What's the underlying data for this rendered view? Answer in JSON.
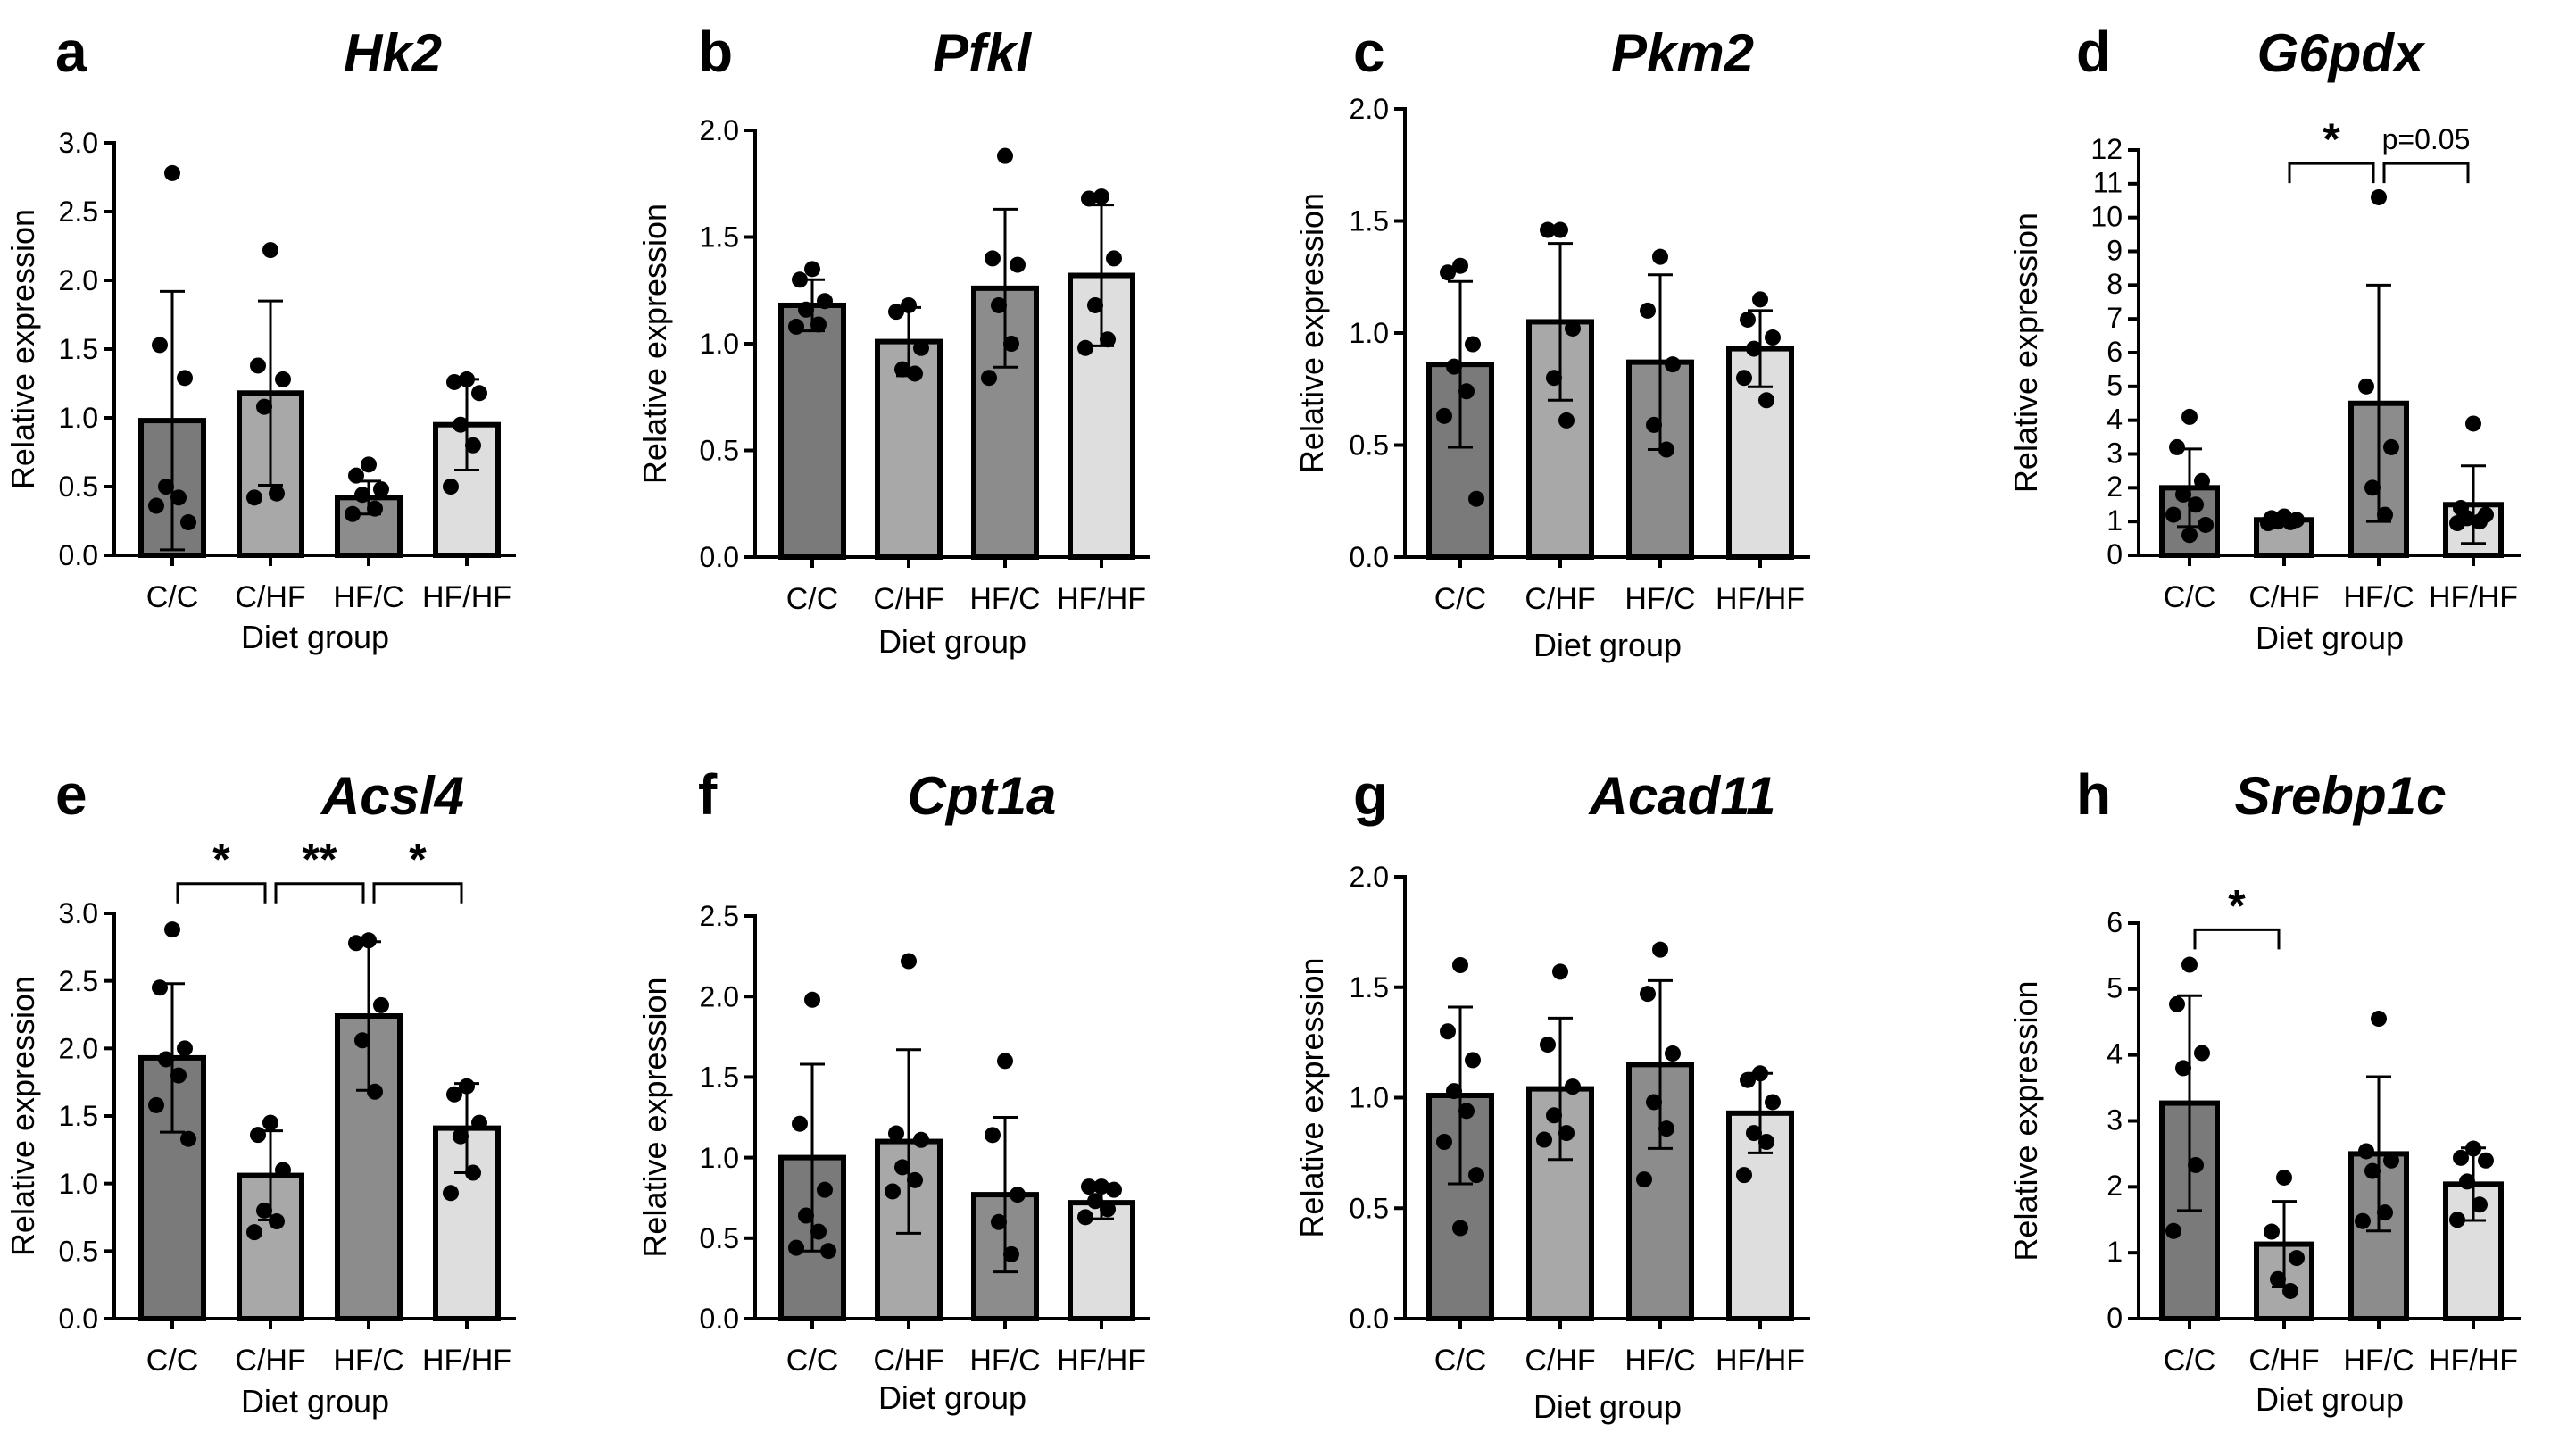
{
  "figure": {
    "categories": [
      "C/C",
      "C/HF",
      "HF/C",
      "HF/HF"
    ],
    "bar_colors": [
      "#7a7a7a",
      "#a8a8a8",
      "#8c8c8c",
      "#dedede"
    ],
    "ylabel": "Relative expression",
    "xlabel": "Diet group"
  },
  "chart_data": [
    {
      "type": "bar",
      "panel": "a",
      "title": "Hk2",
      "categories": [
        "C/C",
        "C/HF",
        "HF/C",
        "HF/HF"
      ],
      "values": [
        0.98,
        1.18,
        0.42,
        0.95
      ],
      "sd": [
        0.94,
        0.67,
        0.12,
        0.33
      ],
      "points": [
        [
          2.78,
          1.53,
          1.29,
          0.5,
          0.42,
          0.36,
          0.24
        ],
        [
          2.22,
          1.38,
          1.28,
          1.08,
          0.45,
          0.42
        ],
        [
          0.66,
          0.58,
          0.48,
          0.44,
          0.34,
          0.3
        ],
        [
          1.28,
          1.26,
          1.18,
          0.95,
          0.8,
          0.5
        ]
      ],
      "ylim": [
        0,
        3.0
      ],
      "yticks": [
        "0.0",
        "0.5",
        "1.0",
        "1.5",
        "2.0",
        "2.5",
        "3.0"
      ],
      "xlabel": "Diet group",
      "ylabel": "Relative expression",
      "brackets": []
    },
    {
      "type": "bar",
      "panel": "b",
      "title": "Pfkl",
      "categories": [
        "C/C",
        "C/HF",
        "HF/C",
        "HF/HF"
      ],
      "values": [
        1.18,
        1.01,
        1.26,
        1.32
      ],
      "sd": [
        0.12,
        0.16,
        0.37,
        0.33
      ],
      "points": [
        [
          1.35,
          1.3,
          1.2,
          1.16,
          1.09,
          1.08
        ],
        [
          1.18,
          1.15,
          0.98,
          0.88,
          0.86
        ],
        [
          1.88,
          1.4,
          1.37,
          1.18,
          1.0,
          0.84
        ],
        [
          1.69,
          1.68,
          1.4,
          1.18,
          1.02,
          0.98
        ]
      ],
      "ylim": [
        0,
        2.0
      ],
      "yticks": [
        "0.0",
        "0.5",
        "1.0",
        "1.5",
        "2.0"
      ],
      "xlabel": "Diet group",
      "ylabel": "Relative expression",
      "brackets": []
    },
    {
      "type": "bar",
      "panel": "c",
      "title": "Pkm2",
      "categories": [
        "C/C",
        "C/HF",
        "HF/C",
        "HF/HF"
      ],
      "values": [
        0.86,
        1.05,
        0.87,
        0.93
      ],
      "sd": [
        0.37,
        0.35,
        0.39,
        0.17
      ],
      "points": [
        [
          1.3,
          1.27,
          0.95,
          0.85,
          0.74,
          0.63,
          0.26
        ],
        [
          1.46,
          1.46,
          1.02,
          0.8,
          0.61
        ],
        [
          1.34,
          1.1,
          0.86,
          0.59,
          0.48
        ],
        [
          1.15,
          1.06,
          0.98,
          0.93,
          0.7,
          0.8
        ]
      ],
      "ylim": [
        0,
        2.0
      ],
      "yticks": [
        "0.0",
        "0.5",
        "1.0",
        "1.5",
        "2.0"
      ],
      "xlabel": "Diet group",
      "ylabel": "Relative expression",
      "brackets": []
    },
    {
      "type": "bar",
      "panel": "d",
      "title": "G6pdx",
      "categories": [
        "C/C",
        "C/HF",
        "HF/C",
        "HF/HF"
      ],
      "values": [
        2.0,
        1.05,
        4.5,
        1.5
      ],
      "sd": [
        1.15,
        0.1,
        3.5,
        1.15
      ],
      "points": [
        [
          4.1,
          3.2,
          2.2,
          1.8,
          1.5,
          1.2,
          0.9,
          0.6
        ],
        [
          1.15,
          1.1,
          1.05,
          1.0,
          0.98,
          0.95
        ],
        [
          10.6,
          5.0,
          3.2,
          2.0,
          1.2
        ],
        [
          3.9,
          1.4,
          1.2,
          1.1,
          1.0,
          0.95
        ]
      ],
      "ylim": [
        0,
        12
      ],
      "yticks": [
        "0",
        "1",
        "2",
        "3",
        "4",
        "5",
        "6",
        "7",
        "8",
        "9",
        "10",
        "11",
        "12"
      ],
      "xlabel": "Diet group",
      "ylabel": "Relative expression",
      "brackets": [
        {
          "from": 1,
          "to": 2,
          "text": "*",
          "level": 11.6
        },
        {
          "from": 2,
          "to": 3,
          "text": "p=0.05",
          "level": 11.6
        }
      ]
    },
    {
      "type": "bar",
      "panel": "e",
      "title": "Acsl4",
      "categories": [
        "C/C",
        "C/HF",
        "HF/C",
        "HF/HF"
      ],
      "values": [
        1.93,
        1.06,
        2.24,
        1.41
      ],
      "sd": [
        0.55,
        0.33,
        0.55,
        0.33
      ],
      "points": [
        [
          2.88,
          2.45,
          2.0,
          1.92,
          1.8,
          1.58,
          1.33
        ],
        [
          1.45,
          1.36,
          1.1,
          0.8,
          0.72,
          0.64
        ],
        [
          2.8,
          2.78,
          2.32,
          2.06,
          1.68
        ],
        [
          1.72,
          1.66,
          1.45,
          1.35,
          1.08,
          0.93
        ]
      ],
      "ylim": [
        0,
        3.0
      ],
      "yticks": [
        "0.0",
        "0.5",
        "1.0",
        "1.5",
        "2.0",
        "2.5",
        "3.0"
      ],
      "xlabel": "Diet group",
      "ylabel": "Relative expression",
      "brackets": [
        {
          "from": 0,
          "to": 1,
          "text": "*",
          "level": 3.22
        },
        {
          "from": 1,
          "to": 2,
          "text": "**",
          "level": 3.22
        },
        {
          "from": 2,
          "to": 3,
          "text": "*",
          "level": 3.22
        }
      ]
    },
    {
      "type": "bar",
      "panel": "f",
      "title": "Cpt1a",
      "categories": [
        "C/C",
        "C/HF",
        "HF/C",
        "HF/HF"
      ],
      "values": [
        1.0,
        1.1,
        0.77,
        0.72
      ],
      "sd": [
        0.58,
        0.57,
        0.48,
        0.1
      ],
      "points": [
        [
          1.98,
          1.21,
          0.8,
          0.64,
          0.54,
          0.44,
          0.42
        ],
        [
          2.22,
          1.15,
          1.11,
          0.94,
          0.86,
          0.79
        ],
        [
          1.6,
          1.14,
          0.77,
          0.6,
          0.4
        ],
        [
          0.82,
          0.82,
          0.8,
          0.73,
          0.68,
          0.63
        ]
      ],
      "ylim": [
        0,
        2.5
      ],
      "yticks": [
        "0.0",
        "0.5",
        "1.0",
        "1.5",
        "2.0",
        "2.5"
      ],
      "xlabel": "Diet group",
      "ylabel": "Relative expression",
      "brackets": []
    },
    {
      "type": "bar",
      "panel": "g",
      "title": "Acad11",
      "categories": [
        "C/C",
        "C/HF",
        "HF/C",
        "HF/HF"
      ],
      "values": [
        1.01,
        1.04,
        1.15,
        0.93
      ],
      "sd": [
        0.4,
        0.32,
        0.38,
        0.18
      ],
      "points": [
        [
          1.6,
          1.3,
          1.17,
          1.03,
          0.94,
          0.8,
          0.65,
          0.41
        ],
        [
          1.57,
          1.24,
          1.05,
          0.92,
          0.84,
          0.81
        ],
        [
          1.67,
          1.47,
          1.2,
          0.98,
          0.86,
          0.63
        ],
        [
          1.11,
          1.08,
          0.98,
          0.84,
          0.8,
          0.65
        ]
      ],
      "ylim": [
        0,
        2.0
      ],
      "yticks": [
        "0.0",
        "0.5",
        "1.0",
        "1.5",
        "2.0"
      ],
      "xlabel": "Diet group",
      "ylabel": "Relative expression",
      "brackets": []
    },
    {
      "type": "bar",
      "panel": "h",
      "title": "Srebp1c",
      "categories": [
        "C/C",
        "C/HF",
        "HF/C",
        "HF/HF"
      ],
      "values": [
        3.27,
        1.13,
        2.5,
        2.04
      ],
      "sd": [
        1.63,
        0.65,
        1.17,
        0.55
      ],
      "points": [
        [
          5.37,
          4.77,
          4.03,
          3.8,
          2.33,
          1.33
        ],
        [
          2.14,
          1.32,
          0.92,
          0.6,
          0.42
        ],
        [
          4.55,
          2.54,
          2.4,
          2.24,
          1.61,
          1.48
        ],
        [
          2.58,
          2.44,
          2.4,
          2.08,
          1.73,
          1.5
        ]
      ],
      "ylim": [
        0,
        6
      ],
      "yticks": [
        "0",
        "1",
        "2",
        "3",
        "4",
        "5",
        "6"
      ],
      "xlabel": "Diet group",
      "ylabel": "Relative expression",
      "brackets": [
        {
          "from": 0,
          "to": 1,
          "text": "*",
          "level": 5.9
        }
      ]
    }
  ]
}
